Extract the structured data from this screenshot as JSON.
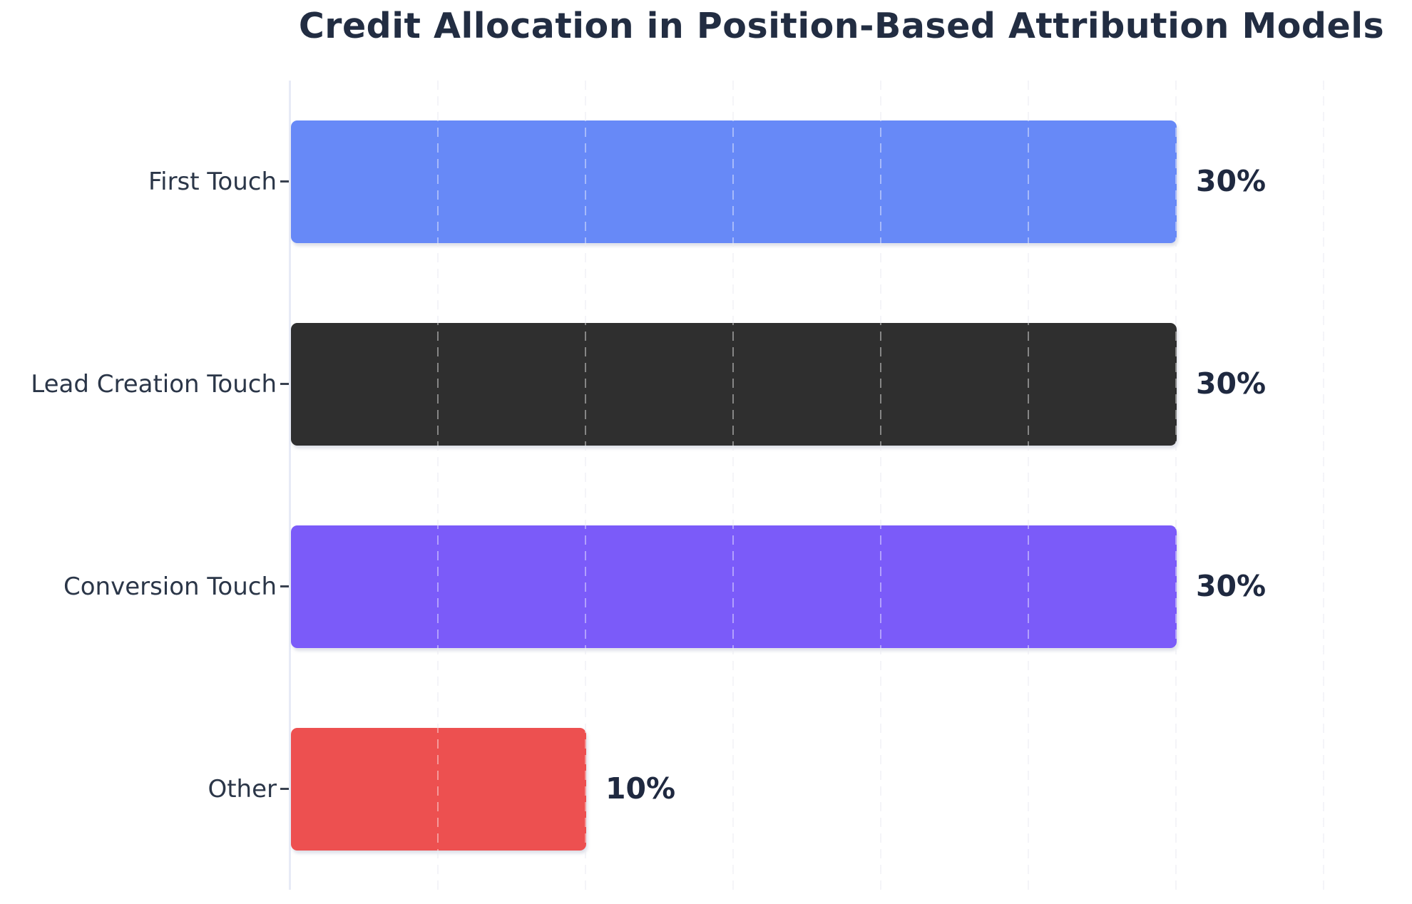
{
  "title": "Credit Allocation in Position-Based Attribution Models",
  "chart_data": {
    "type": "bar",
    "orientation": "horizontal",
    "title": "Credit Allocation in Position-Based Attribution Models",
    "xlabel": "",
    "ylabel": "",
    "xlim": [
      0,
      35
    ],
    "gridline_step_percent": 5,
    "grid": "vertical-dashed",
    "legend": "none",
    "categories": [
      "First Touch",
      "Lead Creation Touch",
      "Conversion Touch",
      "Other"
    ],
    "values": [
      30,
      30,
      30,
      10
    ],
    "rows": [
      {
        "category": "First Touch",
        "value": 30,
        "value_label": "30%",
        "color": "#6789f7"
      },
      {
        "category": "Lead Creation Touch",
        "value": 30,
        "value_label": "30%",
        "color": "#2f2f2f"
      },
      {
        "category": "Conversion Touch",
        "value": 30,
        "value_label": "30%",
        "color": "#7b5bf9"
      },
      {
        "category": "Other",
        "value": 10,
        "value_label": "10%",
        "color": "#ed5050"
      }
    ],
    "colors": {
      "background": "#ffffff",
      "title_text": "#222d42",
      "category_text": "#2b3648",
      "value_text": "#1f2940",
      "axis_line": "#e7ebf6",
      "gridline": "#ededf3"
    }
  }
}
